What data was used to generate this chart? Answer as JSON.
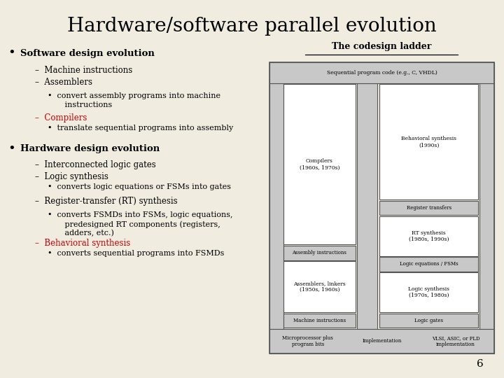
{
  "title": "Hardware/software parallel evolution",
  "bg_color": "#f0ede0",
  "text_color": "#000000",
  "red_color": "#cc0000",
  "bullet_items": [
    {
      "level": 0,
      "color": "black",
      "text": "Software design evolution"
    },
    {
      "level": 1,
      "color": "black",
      "text": "–  Machine instructions"
    },
    {
      "level": 1,
      "color": "black",
      "text": "–  Assemblers"
    },
    {
      "level": 2,
      "color": "black",
      "text": "•  convert assembly programs into machine\n       instructions"
    },
    {
      "level": 1,
      "color": "red",
      "text": "–  Compilers"
    },
    {
      "level": 2,
      "color": "black",
      "text": "•  translate sequential programs into assembly"
    },
    {
      "level": 0,
      "color": "black",
      "text": "Hardware design evolution"
    },
    {
      "level": 1,
      "color": "black",
      "text": "–  Interconnected logic gates"
    },
    {
      "level": 1,
      "color": "black",
      "text": "–  Logic synthesis"
    },
    {
      "level": 2,
      "color": "black",
      "text": "•  converts logic equations or FSMs into gates"
    },
    {
      "level": 1,
      "color": "black",
      "text": "–  Register-transfer (RT) synthesis"
    },
    {
      "level": 2,
      "color": "black",
      "text": "•  converts FSMDs into FSMs, logic equations,\n       predesigned RT components (registers,\n       adders, etc.)"
    },
    {
      "level": 1,
      "color": "red",
      "text": "–  Behavioral synthesis"
    },
    {
      "level": 2,
      "color": "black",
      "text": "•  converts sequential programs into FSMDs"
    }
  ],
  "ladder_title": "The codesign ladder",
  "page_number": "6",
  "gray_fill": "#c8c8c8",
  "white_fill": "#ffffff",
  "edge_color": "#555555"
}
